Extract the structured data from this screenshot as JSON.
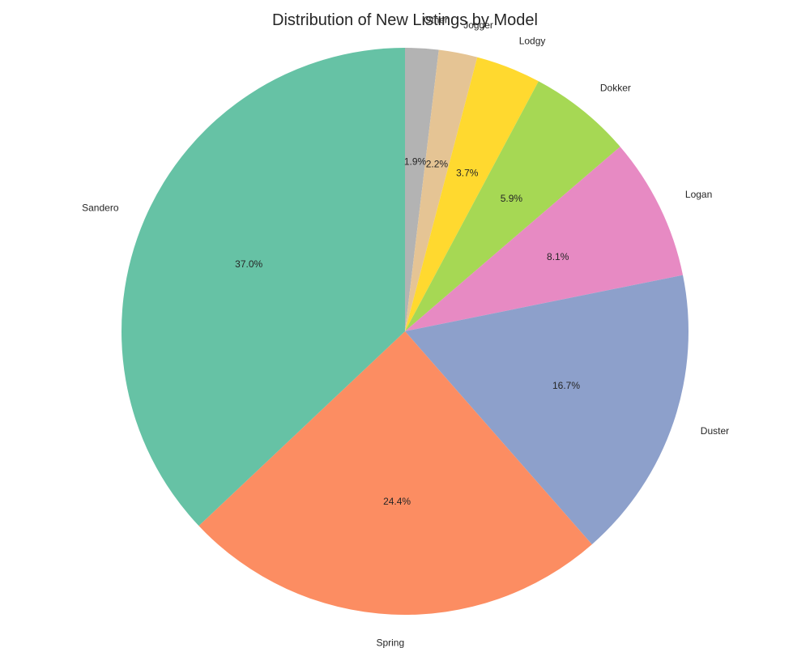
{
  "chart_data": {
    "type": "pie",
    "title": "Distribution of New Listings by Model",
    "start_angle_deg": 90,
    "direction": "clockwise",
    "slices": [
      {
        "label": "Other",
        "percent": 1.9,
        "pct_label": "1.9%",
        "color": "#b3b3b3"
      },
      {
        "label": "Jogger",
        "percent": 2.2,
        "pct_label": "2.2%",
        "color": "#e5c494"
      },
      {
        "label": "Lodgy",
        "percent": 3.7,
        "pct_label": "3.7%",
        "color": "#ffd92f"
      },
      {
        "label": "Dokker",
        "percent": 5.9,
        "pct_label": "5.9%",
        "color": "#a6d854"
      },
      {
        "label": "Logan",
        "percent": 8.1,
        "pct_label": "8.1%",
        "color": "#e78ac3"
      },
      {
        "label": "Duster",
        "percent": 16.7,
        "pct_label": "16.7%",
        "color": "#8da0cb"
      },
      {
        "label": "Spring",
        "percent": 24.4,
        "pct_label": "24.4%",
        "color": "#fc8d62"
      },
      {
        "label": "Sandero",
        "percent": 37.0,
        "pct_label": "37.0%",
        "color": "#66c2a5"
      }
    ]
  }
}
